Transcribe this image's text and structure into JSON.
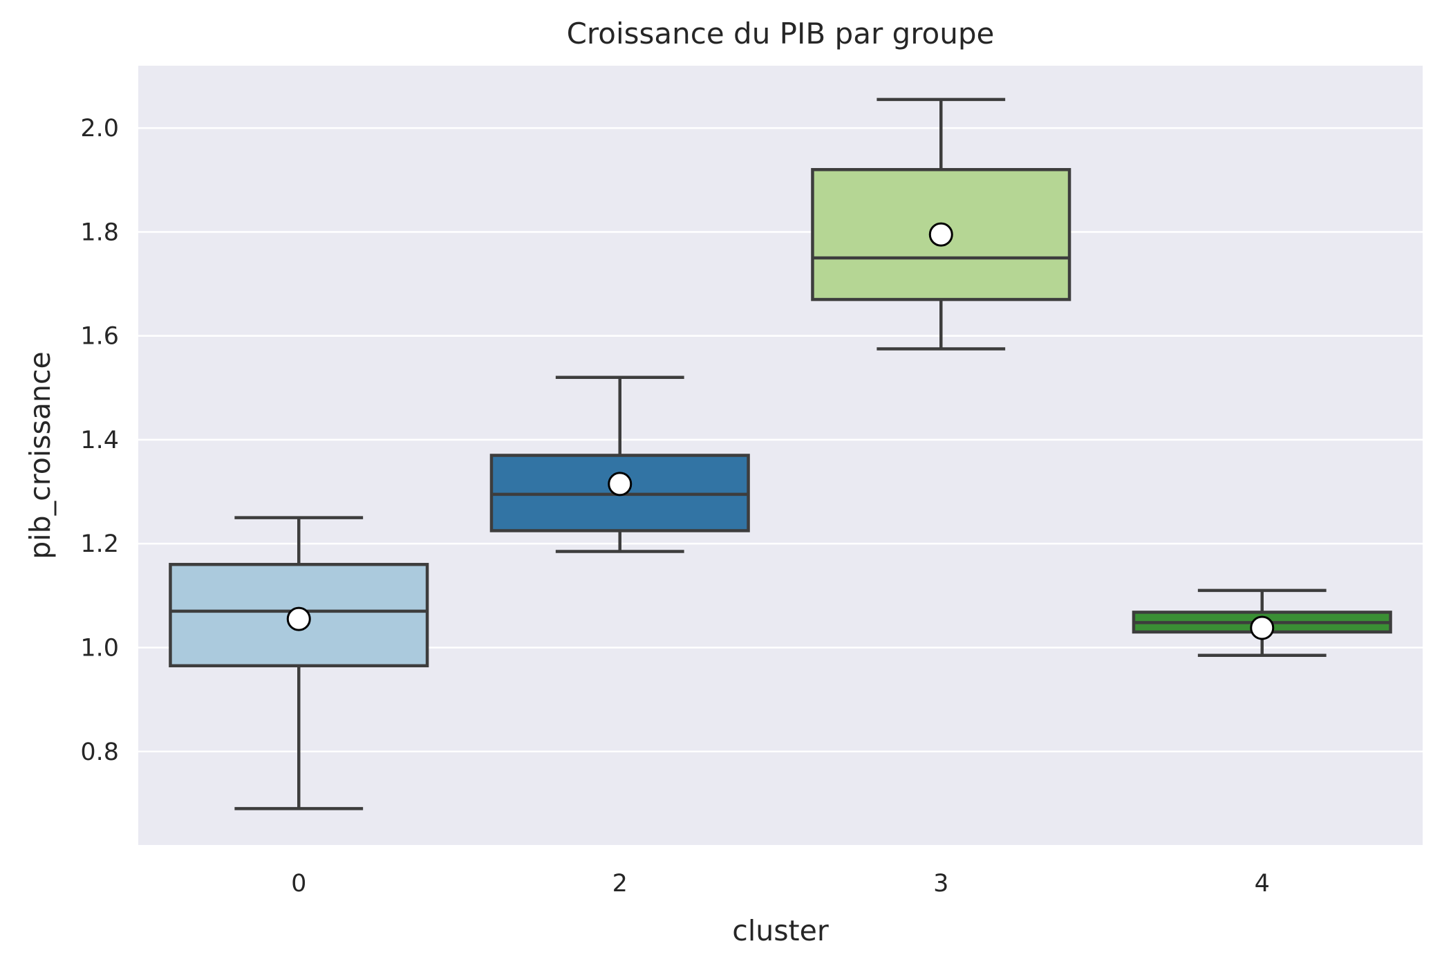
{
  "chart_data": {
    "type": "boxplot",
    "title": "Croissance du PIB par groupe",
    "xlabel": "cluster",
    "ylabel": "pib_croissance",
    "ylim": [
      0.62,
      2.12
    ],
    "yticks": [
      "0.8",
      "1.0",
      "1.2",
      "1.4",
      "1.6",
      "1.8",
      "2.0"
    ],
    "grid": true,
    "categories": [
      "0",
      "2",
      "3",
      "4"
    ],
    "boxes": [
      {
        "category": "0",
        "whisker_low": 0.69,
        "q1": 0.965,
        "median": 1.07,
        "q3": 1.16,
        "whisker_high": 1.25,
        "mean": 1.055,
        "color": "#abcadd"
      },
      {
        "category": "2",
        "whisker_low": 1.185,
        "q1": 1.225,
        "median": 1.295,
        "q3": 1.37,
        "whisker_high": 1.52,
        "mean": 1.315,
        "color": "#3274a4"
      },
      {
        "category": "3",
        "whisker_low": 1.575,
        "q1": 1.67,
        "median": 1.75,
        "q3": 1.92,
        "whisker_high": 2.055,
        "mean": 1.795,
        "color": "#b5d694"
      },
      {
        "category": "4",
        "whisker_low": 0.985,
        "q1": 1.03,
        "median": 1.048,
        "q3": 1.068,
        "whisker_high": 1.11,
        "mean": 1.038,
        "color": "#3a8f34"
      }
    ],
    "background_color": "#eaeaf2",
    "line_color": "#3d3d3d"
  }
}
